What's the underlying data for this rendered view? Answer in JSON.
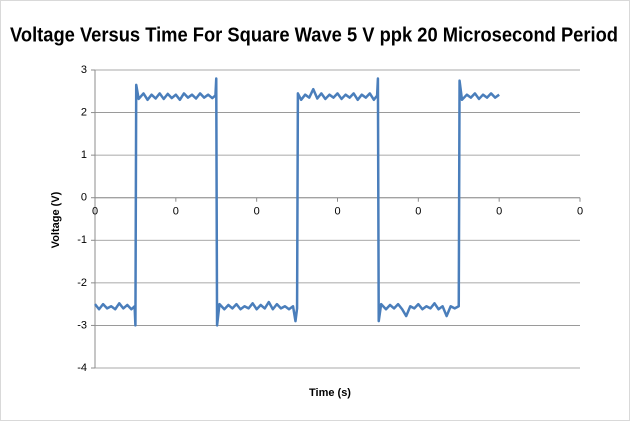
{
  "chart_data": {
    "type": "line",
    "title": "Voltage Versus Time For Square Wave 5 V ppk 20 Microsecond Period",
    "x_label": "Time (s)",
    "y_label": "Voltage (V)",
    "color": "#4a7ebb",
    "grid": true,
    "xlim": [
      0,
      6e-05
    ],
    "xticks": [
      0,
      {
        "value": 1e-05,
        "label": "0"
      },
      {
        "value": 2e-05,
        "label": "0"
      },
      {
        "value": 3e-05,
        "label": "0"
      },
      {
        "value": 4e-05,
        "label": "0"
      },
      {
        "value": 5e-05,
        "label": "0"
      },
      {
        "value": 6e-05,
        "label": "0"
      }
    ],
    "ylim": [
      -4,
      3
    ],
    "yticks": [
      3,
      2,
      1,
      0,
      -1,
      -2,
      -3,
      -4
    ],
    "x": [
      0,
      5e-07,
      1e-06,
      1.5e-06,
      2e-06,
      2.5e-06,
      3e-06,
      3.5e-06,
      4e-06,
      4.5e-06,
      4.9e-06,
      5e-06,
      5.1e-06,
      5.4e-06,
      6e-06,
      6.5e-06,
      7e-06,
      7.5e-06,
      8e-06,
      8.5e-06,
      9e-06,
      9.5e-06,
      1e-05,
      1.05e-05,
      1.1e-05,
      1.15e-05,
      1.2e-05,
      1.25e-05,
      1.3e-05,
      1.35e-05,
      1.4e-05,
      1.45e-05,
      1.49e-05,
      1.5e-05,
      1.51e-05,
      1.54e-05,
      1.6e-05,
      1.65e-05,
      1.7e-05,
      1.75e-05,
      1.8e-05,
      1.85e-05,
      1.9e-05,
      1.95e-05,
      2e-05,
      2.05e-05,
      2.1e-05,
      2.15e-05,
      2.2e-05,
      2.25e-05,
      2.3e-05,
      2.35e-05,
      2.4e-05,
      2.45e-05,
      2.48e-05,
      2.5e-05,
      2.51e-05,
      2.55e-05,
      2.6e-05,
      2.65e-05,
      2.7e-05,
      2.75e-05,
      2.8e-05,
      2.85e-05,
      2.9e-05,
      2.95e-05,
      3e-05,
      3.05e-05,
      3.1e-05,
      3.15e-05,
      3.2e-05,
      3.25e-05,
      3.3e-05,
      3.35e-05,
      3.4e-05,
      3.45e-05,
      3.49e-05,
      3.5e-05,
      3.51e-05,
      3.54e-05,
      3.6e-05,
      3.65e-05,
      3.7e-05,
      3.75e-05,
      3.8e-05,
      3.85e-05,
      3.9e-05,
      3.95e-05,
      4e-05,
      4.05e-05,
      4.1e-05,
      4.15e-05,
      4.2e-05,
      4.25e-05,
      4.3e-05,
      4.35e-05,
      4.4e-05,
      4.45e-05,
      4.5e-05,
      4.51e-05,
      4.54e-05,
      4.6e-05,
      4.65e-05,
      4.7e-05,
      4.75e-05,
      4.8e-05,
      4.85e-05,
      4.9e-05,
      4.95e-05,
      5e-05
    ],
    "values": [
      -2.5,
      -2.62,
      -2.5,
      -2.6,
      -2.55,
      -2.62,
      -2.48,
      -2.6,
      -2.52,
      -2.62,
      -2.55,
      -3.0,
      2.65,
      2.32,
      2.45,
      2.3,
      2.42,
      2.33,
      2.45,
      2.32,
      2.44,
      2.34,
      2.42,
      2.3,
      2.45,
      2.35,
      2.42,
      2.33,
      2.45,
      2.35,
      2.42,
      2.34,
      2.4,
      2.8,
      -3.0,
      -2.5,
      -2.62,
      -2.52,
      -2.6,
      -2.5,
      -2.62,
      -2.55,
      -2.6,
      -2.48,
      -2.62,
      -2.52,
      -2.6,
      -2.45,
      -2.62,
      -2.5,
      -2.6,
      -2.55,
      -2.62,
      -2.55,
      -2.9,
      -2.6,
      2.45,
      2.3,
      2.42,
      2.35,
      2.55,
      2.33,
      2.45,
      2.32,
      2.42,
      2.35,
      2.45,
      2.32,
      2.42,
      2.35,
      2.45,
      2.3,
      2.42,
      2.35,
      2.45,
      2.3,
      2.4,
      2.8,
      -2.9,
      -2.5,
      -2.62,
      -2.52,
      -2.6,
      -2.5,
      -2.62,
      -2.78,
      -2.55,
      -2.6,
      -2.5,
      -2.62,
      -2.55,
      -2.6,
      -2.48,
      -2.62,
      -2.55,
      -2.78,
      -2.55,
      -2.6,
      -2.55,
      2.75,
      2.3,
      2.42,
      2.35,
      2.45,
      2.32,
      2.42,
      2.35,
      2.45,
      2.35,
      2.42
    ]
  }
}
